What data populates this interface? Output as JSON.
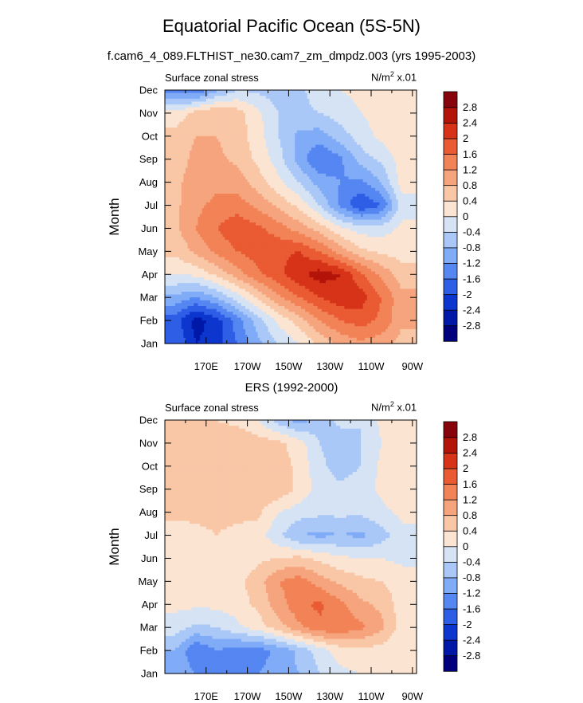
{
  "figure": {
    "title": "Equatorial Pacific Ocean (5S-5N)",
    "subtitle": "f.cam6_4_089.FLTHIST_ne30.cam7_zm_dmpdz.003 (yrs 1995-2003)"
  },
  "colors": {
    "palette": [
      "#00007f",
      "#0018a8",
      "#0c36cd",
      "#2f5ee6",
      "#5586f2",
      "#80abf7",
      "#aac8f7",
      "#d5e3f5",
      "#fbe4d2",
      "#f9c6a6",
      "#f6a47d",
      "#f28357",
      "#ea5a33",
      "#d63318",
      "#b31409",
      "#87050a"
    ]
  },
  "chart_data": [
    {
      "type": "heatmap",
      "title": "",
      "left_string": "Surface zonal stress",
      "units_prefix": "N/m",
      "units_power": "2",
      "units_suffix": " x.01",
      "ylabel": "Month",
      "xlabel": "",
      "x_ticklabels": [
        "170E",
        "170W",
        "150W",
        "130W",
        "110W",
        "90W"
      ],
      "x_tickvalues": [
        170,
        190,
        210,
        230,
        250,
        270
      ],
      "xlim": [
        150,
        272
      ],
      "y_ticklabels": [
        "Jan",
        "Feb",
        "Mar",
        "Apr",
        "May",
        "Jun",
        "Jul",
        "Aug",
        "Sep",
        "Oct",
        "Nov",
        "Dec"
      ],
      "levels": [
        -2.8,
        -2.4,
        -2,
        -1.6,
        -1.2,
        -0.8,
        -0.4,
        0,
        0.4,
        0.8,
        1.2,
        1.6,
        2,
        2.4,
        2.8
      ],
      "level_labels": [
        "2.8",
        "2.4",
        "2",
        "1.6",
        "1.2",
        "0.8",
        "0.4",
        "0",
        "-0.4",
        "-0.8",
        "-1.2",
        "-1.6",
        "-2",
        "-2.4",
        "-2.8"
      ],
      "grid_lon": [
        155,
        165,
        175,
        185,
        195,
        205,
        215,
        225,
        235,
        245,
        255,
        265
      ],
      "values": [
        [
          -1.6,
          -2.4,
          -2.2,
          -1.6,
          -0.9,
          -0.4,
          0.0,
          0.5,
          0.9,
          1.1,
          1.0,
          0.6
        ],
        [
          -1.8,
          -2.6,
          -2.2,
          -1.4,
          -0.6,
          0.1,
          0.6,
          1.2,
          1.6,
          1.8,
          1.5,
          0.9
        ],
        [
          -0.9,
          -1.2,
          -0.8,
          -0.2,
          0.5,
          1.1,
          1.6,
          2.0,
          2.3,
          2.2,
          1.6,
          0.9
        ],
        [
          0.0,
          0.1,
          0.5,
          1.0,
          1.5,
          1.9,
          2.3,
          2.6,
          2.4,
          1.7,
          1.1,
          0.6
        ],
        [
          0.5,
          0.9,
          1.3,
          1.6,
          1.8,
          1.9,
          2.0,
          1.6,
          1.0,
          0.5,
          0.3,
          0.2
        ],
        [
          0.7,
          1.2,
          1.6,
          1.9,
          1.7,
          1.4,
          1.0,
          0.6,
          0.1,
          -0.2,
          -0.2,
          0.1
        ],
        [
          0.7,
          1.1,
          1.3,
          1.4,
          1.1,
          0.7,
          0.3,
          -0.4,
          -1.3,
          -2.0,
          -1.6,
          -0.2
        ],
        [
          0.7,
          1.0,
          1.1,
          1.0,
          0.6,
          0.1,
          -0.4,
          -1.0,
          -1.2,
          -1.3,
          -0.8,
          0.2
        ],
        [
          0.6,
          0.9,
          0.9,
          0.7,
          0.3,
          -0.2,
          -1.0,
          -1.6,
          -1.3,
          -0.6,
          -0.3,
          0.2
        ],
        [
          0.6,
          0.8,
          0.8,
          0.6,
          0.2,
          -0.4,
          -0.9,
          -1.0,
          -0.6,
          -0.2,
          0.1,
          0.3
        ],
        [
          0.1,
          0.6,
          0.8,
          0.6,
          0.1,
          -0.4,
          -0.5,
          -0.4,
          -0.2,
          0.0,
          0.2,
          0.3
        ],
        [
          -1.4,
          -1.6,
          -0.9,
          -0.4,
          -0.5,
          -0.6,
          -0.5,
          -0.2,
          0.0,
          0.1,
          0.1,
          0.2
        ]
      ]
    },
    {
      "type": "heatmap",
      "title": "ERS (1992-2000)",
      "left_string": "Surface zonal stress",
      "units_prefix": "N/m",
      "units_power": "2",
      "units_suffix": " x.01",
      "ylabel": "Month",
      "xlabel": "",
      "x_ticklabels": [
        "170E",
        "170W",
        "150W",
        "130W",
        "110W",
        "90W"
      ],
      "x_tickvalues": [
        170,
        190,
        210,
        230,
        250,
        270
      ],
      "xlim": [
        150,
        272
      ],
      "y_ticklabels": [
        "Jan",
        "Feb",
        "Mar",
        "Apr",
        "May",
        "Jun",
        "Jul",
        "Aug",
        "Sep",
        "Oct",
        "Nov",
        "Dec"
      ],
      "levels": [
        -2.8,
        -2.4,
        -2,
        -1.6,
        -1.2,
        -0.8,
        -0.4,
        0,
        0.4,
        0.8,
        1.2,
        1.6,
        2,
        2.4,
        2.8
      ],
      "level_labels": [
        "2.8",
        "2.4",
        "2",
        "1.6",
        "1.2",
        "0.8",
        "0.4",
        "0",
        "-0.4",
        "-0.8",
        "-1.2",
        "-1.6",
        "-2",
        "-2.4",
        "-2.8"
      ],
      "grid_lon": [
        155,
        165,
        175,
        185,
        195,
        205,
        215,
        225,
        235,
        245,
        255,
        265
      ],
      "values": [
        [
          -0.9,
          -1.2,
          -1.3,
          -1.4,
          -1.2,
          -1.0,
          -0.8,
          -0.4,
          -0.1,
          0.0,
          0.1,
          0.1
        ],
        [
          -0.8,
          -1.6,
          -1.2,
          -1.4,
          -1.4,
          -1.1,
          -0.7,
          -0.2,
          0.2,
          0.3,
          0.2,
          0.1
        ],
        [
          -0.2,
          -0.5,
          -0.4,
          -0.1,
          0.2,
          0.6,
          1.1,
          1.5,
          1.5,
          1.3,
          0.9,
          0.2
        ],
        [
          0.1,
          0.1,
          0.1,
          0.2,
          0.5,
          1.0,
          1.5,
          1.7,
          1.3,
          0.9,
          0.7,
          0.2
        ],
        [
          0.2,
          0.1,
          0.2,
          0.3,
          0.6,
          1.2,
          1.4,
          1.0,
          0.7,
          0.5,
          0.4,
          0.2
        ],
        [
          0.4,
          0.2,
          0.1,
          0.1,
          0.3,
          0.4,
          0.5,
          0.3,
          0.1,
          0.0,
          0.0,
          -0.1
        ],
        [
          0.2,
          0.3,
          0.4,
          0.3,
          0.2,
          -0.3,
          -0.8,
          -0.9,
          -0.8,
          -0.9,
          -0.6,
          -0.1
        ],
        [
          0.5,
          0.5,
          0.5,
          0.5,
          0.5,
          0.0,
          -0.2,
          -0.3,
          -0.3,
          -0.3,
          -0.1,
          0.1
        ],
        [
          0.6,
          0.5,
          0.6,
          0.5,
          0.7,
          0.7,
          0.3,
          -0.2,
          -0.3,
          -0.2,
          0.1,
          0.2
        ],
        [
          0.5,
          0.5,
          0.6,
          0.6,
          0.6,
          0.6,
          0.3,
          -0.3,
          -0.6,
          -0.4,
          0.1,
          0.2
        ],
        [
          0.5,
          0.6,
          0.6,
          0.7,
          0.6,
          0.5,
          0.2,
          -0.4,
          -0.6,
          -0.4,
          0.0,
          0.2
        ],
        [
          0.4,
          0.8,
          0.4,
          0.3,
          0.0,
          -0.6,
          -1.0,
          -0.6,
          -0.3,
          -0.4,
          0.1,
          0.2
        ]
      ]
    }
  ]
}
